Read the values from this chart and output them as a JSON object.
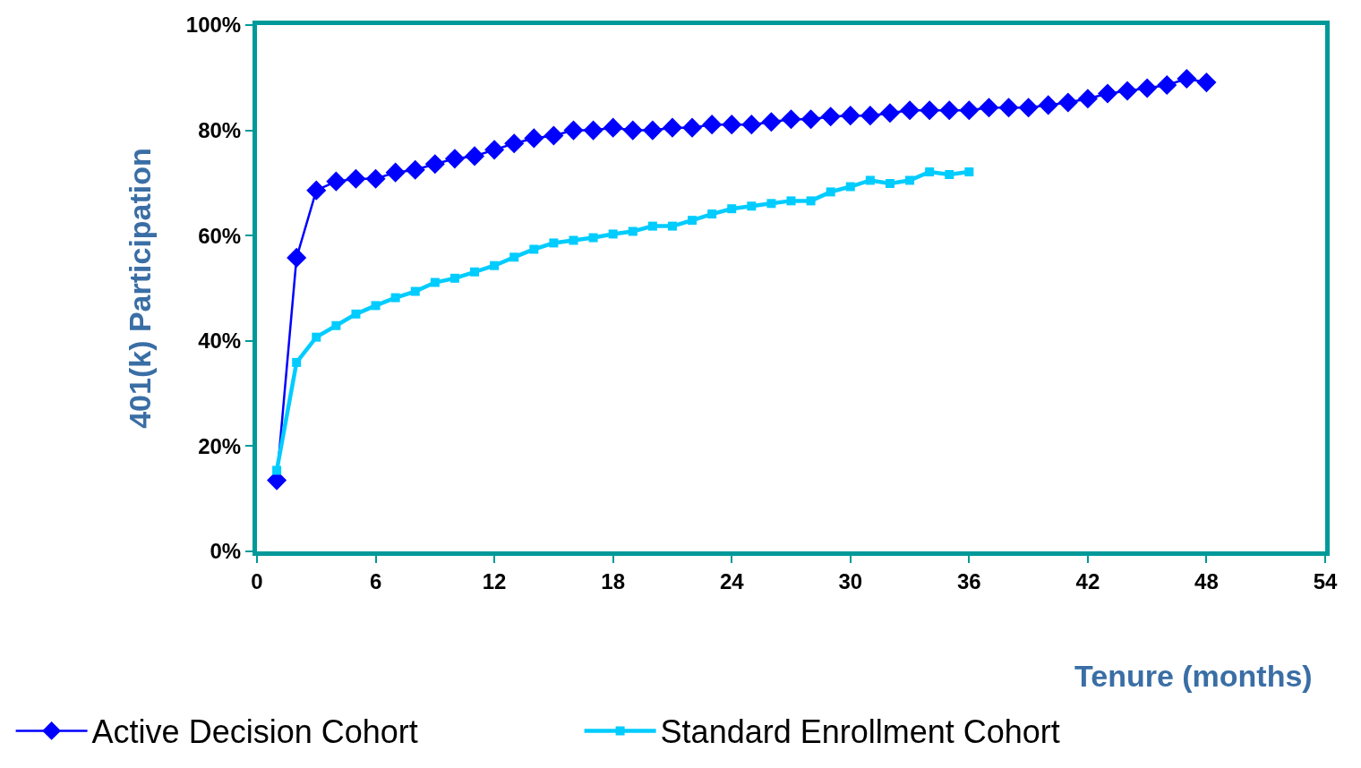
{
  "chart_data": {
    "type": "line",
    "xlabel": "Tenure (months)",
    "ylabel": "401(k) Participation",
    "xlim": [
      0,
      54
    ],
    "xticks": [
      0,
      6,
      12,
      18,
      24,
      30,
      36,
      42,
      48,
      54
    ],
    "ylim": [
      0,
      100
    ],
    "yticks": [
      {
        "value": 0,
        "label": "0%"
      },
      {
        "value": 20,
        "label": "20%"
      },
      {
        "value": 40,
        "label": "40%"
      },
      {
        "value": 60,
        "label": "60%"
      },
      {
        "value": 80,
        "label": "80%"
      },
      {
        "value": 100,
        "label": "100%"
      }
    ],
    "legend": "bottom",
    "series": [
      {
        "name": "Active Decision Cohort",
        "color": "#0000ff",
        "marker": "diamond",
        "x": [
          1,
          2,
          3,
          4,
          5,
          6,
          7,
          8,
          9,
          10,
          11,
          12,
          13,
          14,
          15,
          16,
          17,
          18,
          19,
          20,
          21,
          22,
          23,
          24,
          25,
          26,
          27,
          28,
          29,
          30,
          31,
          32,
          33,
          34,
          35,
          36,
          37,
          38,
          39,
          40,
          41,
          42,
          43,
          44,
          45,
          46,
          47,
          48
        ],
        "values": [
          13.5,
          55.8,
          68.6,
          70.3,
          70.8,
          70.8,
          72,
          72.5,
          73.6,
          74.6,
          75.1,
          76.3,
          77.5,
          78.5,
          79,
          80,
          80,
          80.5,
          80,
          80,
          80.5,
          80.5,
          81.1,
          81.1,
          81.1,
          81.6,
          82.1,
          82.1,
          82.6,
          82.8,
          82.8,
          83.3,
          83.8,
          83.8,
          83.8,
          83.8,
          84.3,
          84.3,
          84.3,
          84.8,
          85.3,
          86,
          87,
          87.5,
          88,
          88.6,
          89.8,
          89.1
        ]
      },
      {
        "name": "Standard Enrollment Cohort",
        "color": "#00ccff",
        "marker": "square",
        "x": [
          1,
          2,
          3,
          4,
          5,
          6,
          7,
          8,
          9,
          10,
          11,
          12,
          13,
          14,
          15,
          16,
          17,
          18,
          19,
          20,
          21,
          22,
          23,
          24,
          25,
          26,
          27,
          28,
          29,
          30,
          31,
          32,
          33,
          34,
          35,
          36
        ],
        "values": [
          15.4,
          35.9,
          40.7,
          42.9,
          45.1,
          46.7,
          48.2,
          49.4,
          51.1,
          51.9,
          53.1,
          54.3,
          55.9,
          57.4,
          58.6,
          59.1,
          59.6,
          60.3,
          60.8,
          61.8,
          61.8,
          62.9,
          64.1,
          65.1,
          65.6,
          66.1,
          66.6,
          66.6,
          68.3,
          69.3,
          70.5,
          69.9,
          70.5,
          72.1,
          71.6,
          72.1
        ]
      }
    ]
  }
}
